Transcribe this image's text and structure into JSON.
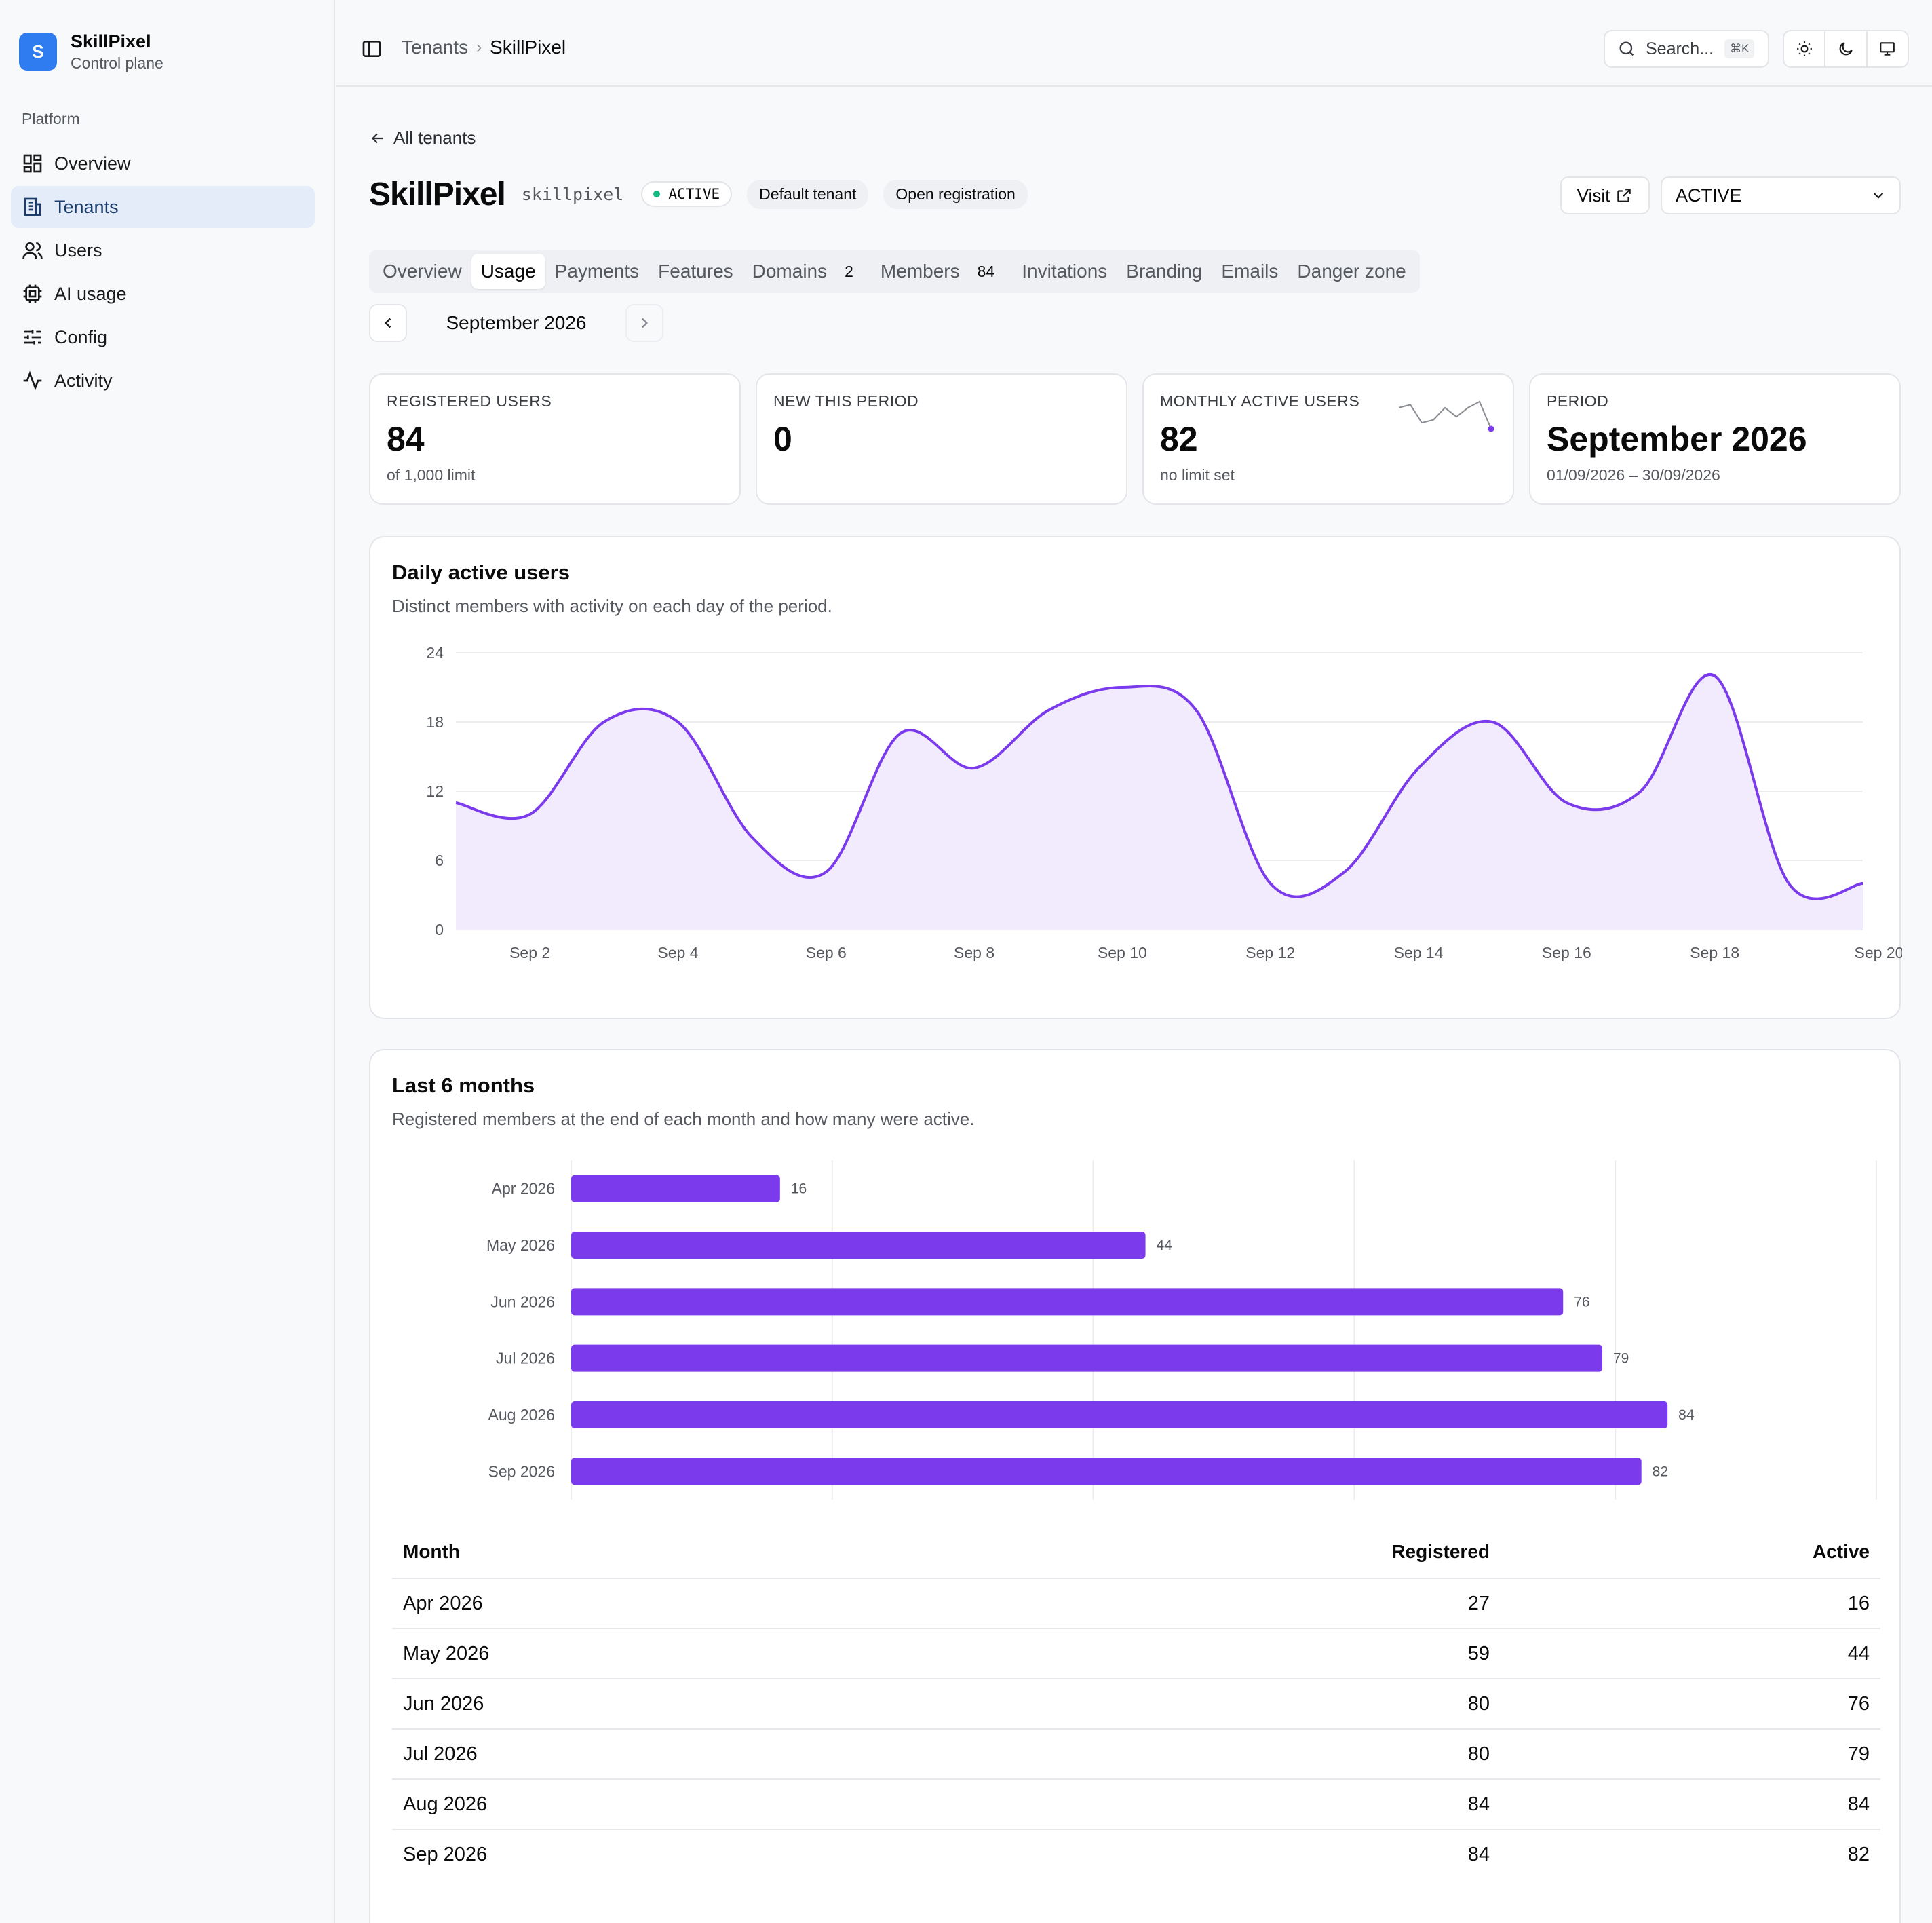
{
  "brand": {
    "initial": "S",
    "name": "SkillPixel",
    "subtitle": "Control plane",
    "color": "#2f7cf0"
  },
  "sidebar": {
    "heading": "Platform",
    "items": [
      {
        "label": "Overview",
        "icon": "dashboard-icon",
        "active": false
      },
      {
        "label": "Tenants",
        "icon": "building-icon",
        "active": true
      },
      {
        "label": "Users",
        "icon": "users-icon",
        "active": false
      },
      {
        "label": "AI usage",
        "icon": "cpu-icon",
        "active": false
      },
      {
        "label": "Config",
        "icon": "sliders-icon",
        "active": false
      },
      {
        "label": "Activity",
        "icon": "activity-icon",
        "active": false
      }
    ]
  },
  "topbar": {
    "breadcrumb": [
      "Tenants",
      "SkillPixel"
    ],
    "search_placeholder": "Search...",
    "search_shortcut": "⌘K",
    "theme_buttons": [
      "sun-icon",
      "moon-icon",
      "monitor-icon"
    ]
  },
  "page": {
    "back_label": "All tenants",
    "title": "SkillPixel",
    "slug": "skillpixel",
    "status_badge": "ACTIVE",
    "tags": [
      "Default tenant",
      "Open registration"
    ],
    "visit_label": "Visit",
    "status_select": "ACTIVE",
    "status_color": "#10b981"
  },
  "tabs": [
    {
      "label": "Overview",
      "count": null,
      "active": false
    },
    {
      "label": "Usage",
      "count": null,
      "active": true
    },
    {
      "label": "Payments",
      "count": null,
      "active": false
    },
    {
      "label": "Features",
      "count": null,
      "active": false
    },
    {
      "label": "Domains",
      "count": "2",
      "active": false
    },
    {
      "label": "Members",
      "count": "84",
      "active": false
    },
    {
      "label": "Invitations",
      "count": null,
      "active": false
    },
    {
      "label": "Branding",
      "count": null,
      "active": false
    },
    {
      "label": "Emails",
      "count": null,
      "active": false
    },
    {
      "label": "Danger zone",
      "count": null,
      "active": false
    }
  ],
  "period_nav": {
    "label": "September 2026"
  },
  "stats": [
    {
      "label": "REGISTERED USERS",
      "value": "84",
      "sub": "of 1,000 limit"
    },
    {
      "label": "NEW THIS PERIOD",
      "value": "0",
      "sub": ""
    },
    {
      "label": "MONTHLY ACTIVE USERS",
      "value": "82",
      "sub": "no limit set"
    },
    {
      "label": "PERIOD",
      "value": "September 2026",
      "sub": "01/09/2026 – 30/09/2026"
    }
  ],
  "daily_card": {
    "title": "Daily active users",
    "description": "Distinct members with activity on each day of the period."
  },
  "monthly_card": {
    "title": "Last 6 months",
    "description": "Registered members at the end of each month and how many were active."
  },
  "colors": {
    "accent": "#7c3aed",
    "area_fill": "#f1ebfd",
    "grid": "#ececef",
    "axis_text": "#55585e"
  },
  "chart_data": [
    {
      "type": "area",
      "x": [
        "Sep 1",
        "Sep 2",
        "Sep 3",
        "Sep 4",
        "Sep 5",
        "Sep 6",
        "Sep 7",
        "Sep 8",
        "Sep 9",
        "Sep 10",
        "Sep 11",
        "Sep 12",
        "Sep 13",
        "Sep 14",
        "Sep 15",
        "Sep 16",
        "Sep 17",
        "Sep 18",
        "Sep 19",
        "Sep 20"
      ],
      "tick_labels": [
        "Sep 2",
        "Sep 4",
        "Sep 6",
        "Sep 8",
        "Sep 10",
        "Sep 12",
        "Sep 14",
        "Sep 16",
        "Sep 18",
        "Sep 20"
      ],
      "values": [
        11,
        10,
        18,
        18,
        8,
        5,
        17,
        14,
        19,
        21,
        19,
        4,
        5,
        14,
        18,
        11,
        12,
        22,
        4,
        4
      ],
      "ylim": [
        0,
        24
      ],
      "yticks": [
        0,
        6,
        12,
        18,
        24
      ],
      "grid": true
    },
    {
      "type": "bar",
      "orientation": "horizontal",
      "categories": [
        "Apr 2026",
        "May 2026",
        "Jun 2026",
        "Jul 2026",
        "Aug 2026",
        "Sep 2026"
      ],
      "values": [
        16,
        44,
        76,
        79,
        84,
        82
      ],
      "xlim": [
        0,
        100
      ],
      "grid": true
    },
    {
      "type": "table",
      "columns": [
        "Month",
        "Registered",
        "Active"
      ],
      "rows": [
        [
          "Apr 2026",
          "27",
          "16"
        ],
        [
          "May 2026",
          "59",
          "44"
        ],
        [
          "Jun 2026",
          "80",
          "76"
        ],
        [
          "Jul 2026",
          "80",
          "79"
        ],
        [
          "Aug 2026",
          "84",
          "84"
        ],
        [
          "Sep 2026",
          "84",
          "82"
        ]
      ]
    }
  ],
  "sparkline": {
    "values": [
      12,
      13,
      7,
      8,
      12,
      9,
      12,
      14,
      5
    ]
  }
}
